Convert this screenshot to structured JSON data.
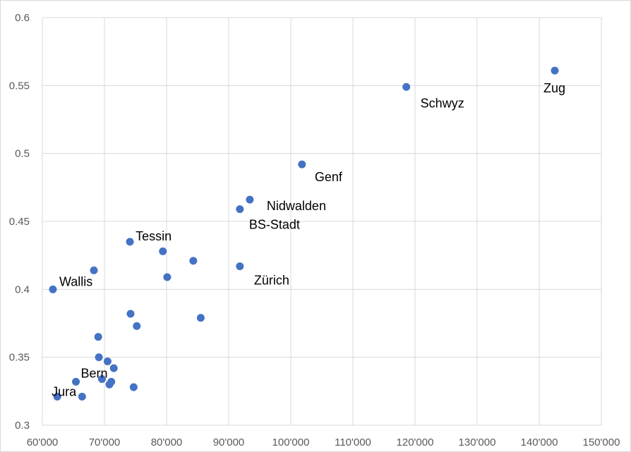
{
  "chart_data": {
    "type": "scatter",
    "title": "",
    "xlabel": "",
    "ylabel": "",
    "xlim": [
      60000,
      150000
    ],
    "ylim": [
      0.3,
      0.6
    ],
    "x_ticks": [
      60000,
      70000,
      80000,
      90000,
      100000,
      110000,
      120000,
      130000,
      140000,
      150000
    ],
    "x_tick_labels": [
      "60'000",
      "70'000",
      "80'000",
      "90'000",
      "100'000",
      "110'000",
      "120'000",
      "130'000",
      "140'000",
      "150'000"
    ],
    "y_ticks": [
      0.3,
      0.35,
      0.4,
      0.45,
      0.5,
      0.55,
      0.6
    ],
    "y_tick_labels": [
      "0.3",
      "0.35",
      "0.4",
      "0.45",
      "0.5",
      "0.55",
      "0.6"
    ],
    "grid": true,
    "marker_color": "#4472c4",
    "points": [
      {
        "x": 142500,
        "y": 0.561,
        "label": "Zug"
      },
      {
        "x": 118600,
        "y": 0.549,
        "label": "Schwyz"
      },
      {
        "x": 101800,
        "y": 0.492,
        "label": "Genf"
      },
      {
        "x": 93400,
        "y": 0.466,
        "label": "Nidwalden"
      },
      {
        "x": 91800,
        "y": 0.459,
        "label": "BS-Stadt"
      },
      {
        "x": 91800,
        "y": 0.417,
        "label": "Zürich"
      },
      {
        "x": 74100,
        "y": 0.435,
        "label": "Tessin"
      },
      {
        "x": 61700,
        "y": 0.4,
        "label": "Wallis"
      },
      {
        "x": 69600,
        "y": 0.334,
        "label": "Bern"
      },
      {
        "x": 62400,
        "y": 0.321,
        "label": "Jura"
      },
      {
        "x": 79400,
        "y": 0.428,
        "label": ""
      },
      {
        "x": 84300,
        "y": 0.421,
        "label": ""
      },
      {
        "x": 80100,
        "y": 0.409,
        "label": ""
      },
      {
        "x": 68300,
        "y": 0.414,
        "label": ""
      },
      {
        "x": 74200,
        "y": 0.382,
        "label": ""
      },
      {
        "x": 75200,
        "y": 0.373,
        "label": ""
      },
      {
        "x": 85500,
        "y": 0.379,
        "label": ""
      },
      {
        "x": 69000,
        "y": 0.365,
        "label": ""
      },
      {
        "x": 69100,
        "y": 0.35,
        "label": ""
      },
      {
        "x": 70500,
        "y": 0.347,
        "label": ""
      },
      {
        "x": 71500,
        "y": 0.342,
        "label": ""
      },
      {
        "x": 65400,
        "y": 0.332,
        "label": ""
      },
      {
        "x": 71100,
        "y": 0.332,
        "label": ""
      },
      {
        "x": 70800,
        "y": 0.33,
        "label": ""
      },
      {
        "x": 74700,
        "y": 0.328,
        "label": ""
      },
      {
        "x": 66400,
        "y": 0.321,
        "label": ""
      }
    ]
  }
}
